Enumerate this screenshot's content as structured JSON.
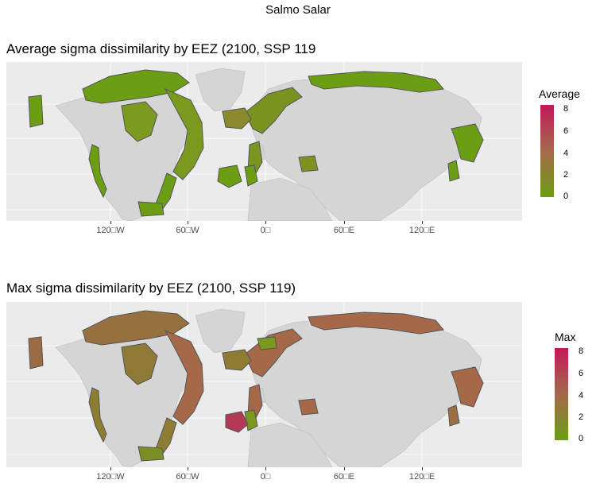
{
  "suptitle": "Salmo Salar",
  "panels": [
    {
      "title": "Average sigma dissimilarity by EEZ (2100, SSP 119",
      "legend_title": "Average",
      "x_ticks": [
        "120□W",
        "60□W",
        "0□",
        "60□E",
        "120□E"
      ],
      "legend_ticks": [
        "8",
        "6",
        "4",
        "2",
        "0"
      ]
    },
    {
      "title": "Max sigma dissimilarity by EEZ (2100, SSP 119)",
      "legend_title": "Max",
      "x_ticks": [
        "120□W",
        "60□W",
        "0□",
        "60□E",
        "120□E"
      ],
      "legend_ticks": [
        "8",
        "6",
        "4",
        "2",
        "0"
      ]
    }
  ],
  "colors": {
    "low": "#6b9e13",
    "mid": "#a5694a",
    "high": "#c2185b",
    "land": "#d5d5d5",
    "panel_bg": "#ebebeb",
    "coast": "#555555"
  }
}
